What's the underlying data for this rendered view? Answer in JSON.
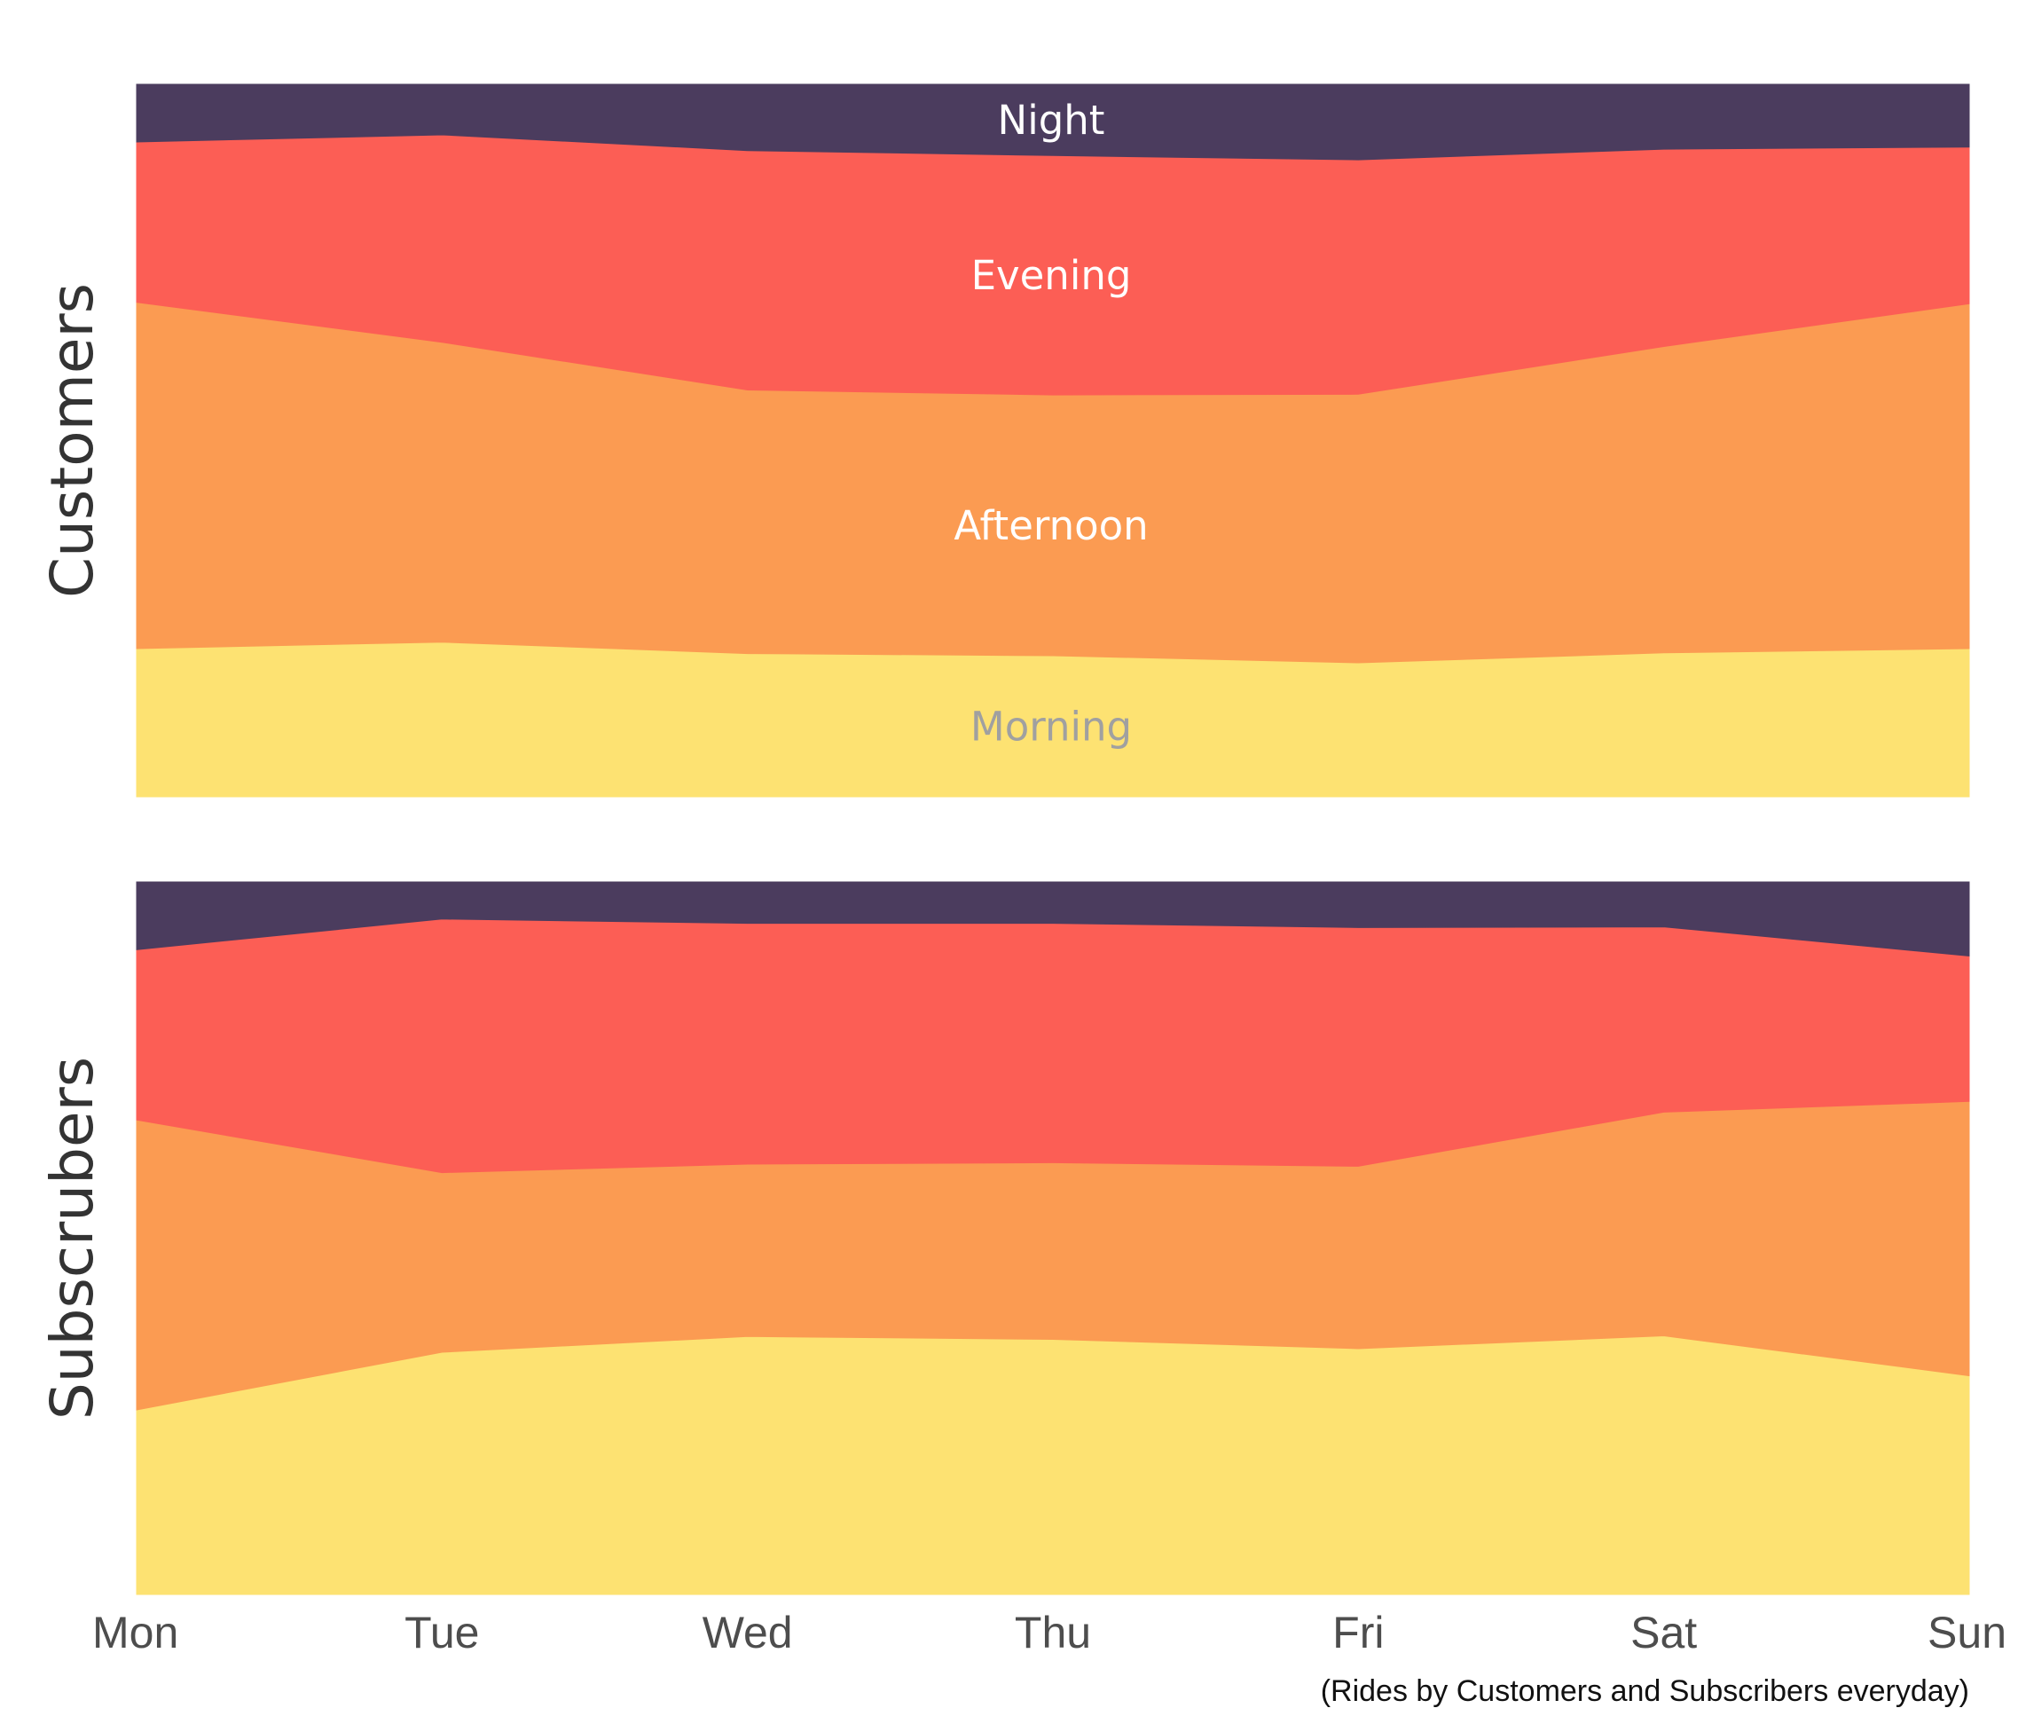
{
  "chart_data": {
    "type": "area",
    "stacked": "percent",
    "categories": [
      "Mon",
      "Tue",
      "Wed",
      "Thu",
      "Fri",
      "Sat",
      "Sun"
    ],
    "colors": {
      "Morning": "#fde272",
      "Afternoon": "#fb9b52",
      "Evening": "#fc5e55",
      "Night": "#4b3c5e"
    },
    "band_label_colors": {
      "Morning": "#a0a0a0",
      "Afternoon": "#ffffff",
      "Evening": "#ffffff",
      "Night": "#ffffff"
    },
    "panels": [
      {
        "label": "Customers",
        "series": [
          {
            "name": "Morning",
            "values": [
              20.8,
              21.7,
              20.1,
              19.8,
              18.8,
              20.2,
              20.8
            ]
          },
          {
            "name": "Afternoon",
            "values": [
              48.6,
              42.1,
              37.0,
              36.6,
              37.7,
              43.0,
              48.4
            ]
          },
          {
            "name": "Evening",
            "values": [
              22.5,
              29.1,
              33.6,
              33.6,
              32.9,
              27.7,
              22.0
            ]
          },
          {
            "name": "Night",
            "values": [
              8.1,
              7.1,
              9.3,
              10.0,
              10.6,
              9.1,
              8.8
            ]
          }
        ]
      },
      {
        "label": "Subscrubers",
        "series": [
          {
            "name": "Morning",
            "values": [
              25.9,
              34.0,
              36.2,
              35.8,
              34.5,
              36.3,
              30.7
            ]
          },
          {
            "name": "Afternoon",
            "values": [
              40.7,
              25.2,
              24.2,
              24.8,
              25.6,
              31.4,
              38.5
            ]
          },
          {
            "name": "Evening",
            "values": [
              23.9,
              35.6,
              33.8,
              33.6,
              33.5,
              26.0,
              20.4
            ]
          },
          {
            "name": "Night",
            "values": [
              9.5,
              5.2,
              5.8,
              5.8,
              6.4,
              6.3,
              10.4
            ]
          }
        ]
      }
    ],
    "band_labels_on_panel": 0,
    "ylim": [
      0,
      100
    ],
    "grid": false,
    "legend": "none",
    "caption": "(Rides by Customers and Subscribers everyday)"
  }
}
